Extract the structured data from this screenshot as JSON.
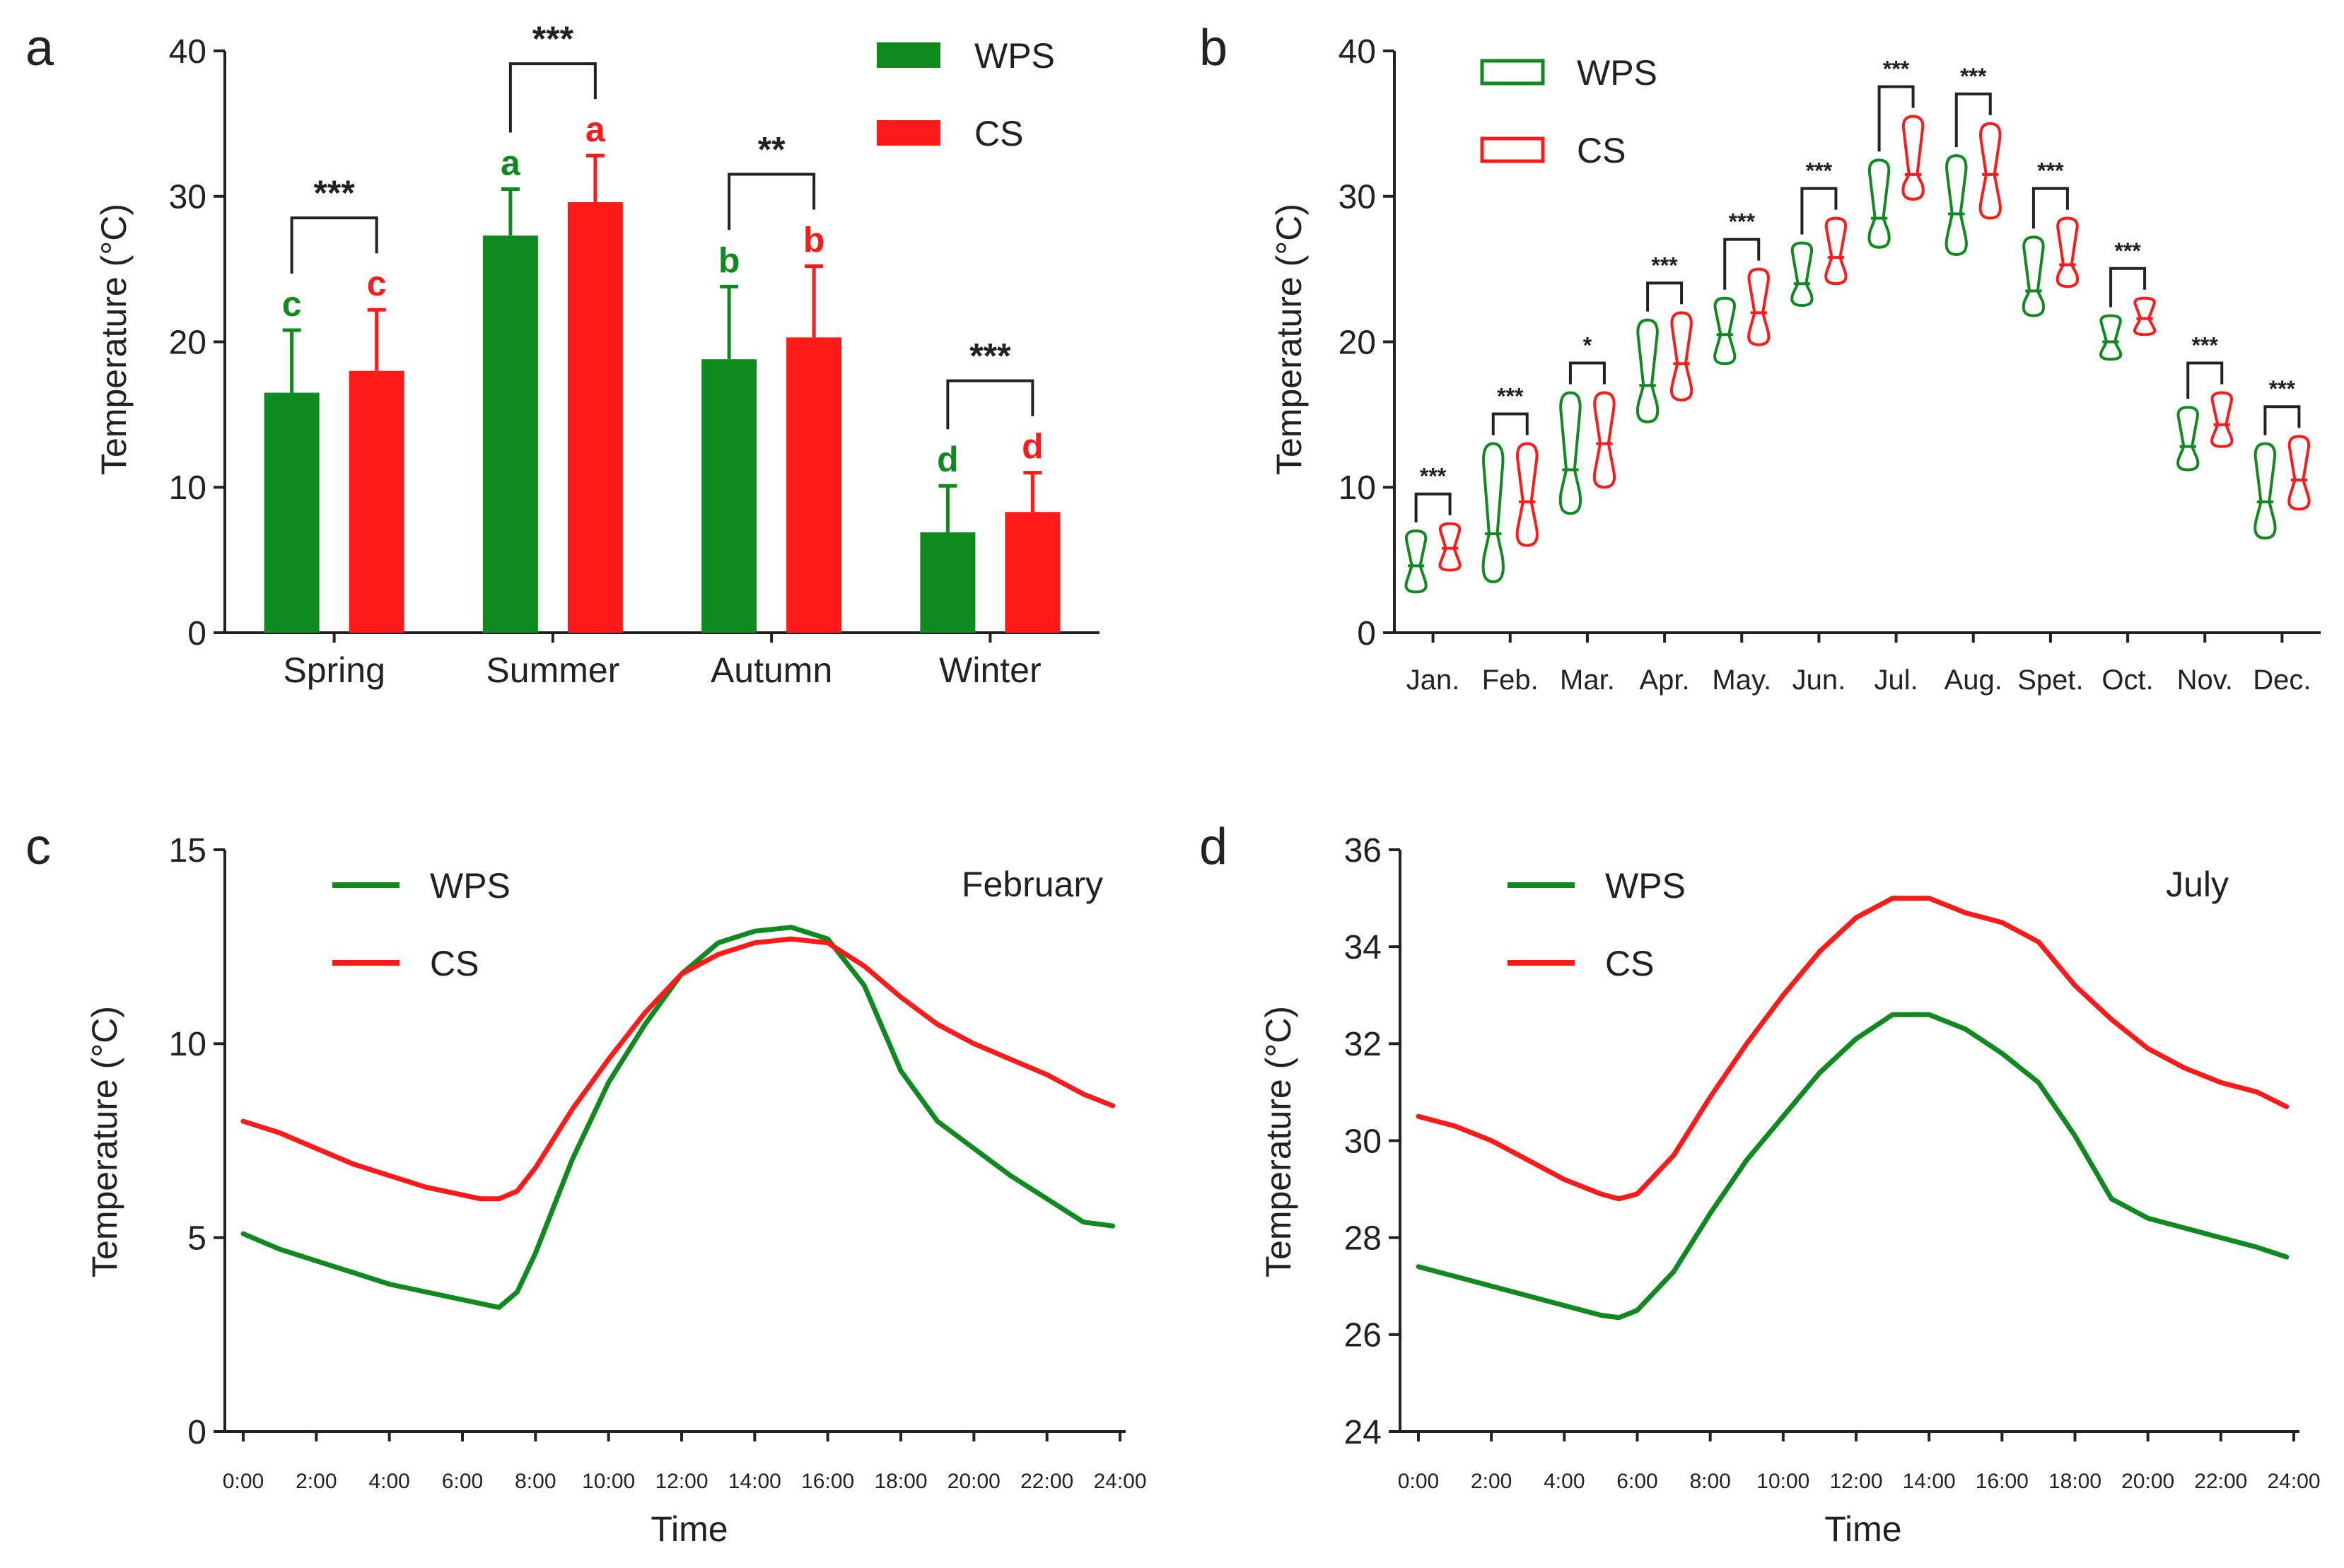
{
  "colors": {
    "wps": "#0e8a1e",
    "cs": "#ff1a1a",
    "axis": "#222222"
  },
  "chart_data": [
    {
      "panel": "a",
      "type": "bar",
      "ylabel": "Temperature (°C)",
      "ylim": [
        0,
        40
      ],
      "yticks": [
        0,
        10,
        20,
        30,
        40
      ],
      "categories": [
        "Spring",
        "Summer",
        "Autumn",
        "Winter"
      ],
      "legend": [
        "WPS",
        "CS"
      ],
      "series": [
        {
          "name": "WPS",
          "values": [
            16.5,
            27.3,
            18.8,
            6.9
          ],
          "errors": [
            4.3,
            3.2,
            5.0,
            3.2
          ],
          "letters": [
            "c",
            "a",
            "b",
            "d"
          ]
        },
        {
          "name": "CS",
          "values": [
            18.0,
            29.6,
            20.3,
            8.3
          ],
          "errors": [
            4.2,
            3.2,
            4.9,
            2.7
          ],
          "letters": [
            "c",
            "a",
            "b",
            "d"
          ]
        }
      ],
      "significance": [
        "***",
        "***",
        "**",
        "***"
      ]
    },
    {
      "panel": "b",
      "type": "violin",
      "ylabel": "Temperature (°C)",
      "ylim": [
        0,
        40
      ],
      "yticks": [
        0,
        10,
        20,
        30,
        40
      ],
      "categories": [
        "Jan.",
        "Feb.",
        "Mar.",
        "Apr.",
        "May.",
        "Jun.",
        "Jul.",
        "Aug.",
        "Spet.",
        "Oct.",
        "Nov.",
        "Dec."
      ],
      "legend": [
        "WPS",
        "CS"
      ],
      "series": [
        {
          "name": "WPS",
          "min": [
            2.8,
            3.5,
            8.2,
            14.5,
            18.5,
            22.5,
            26.5,
            26.0,
            21.8,
            18.8,
            11.2,
            6.5
          ],
          "median": [
            4.6,
            6.8,
            11.2,
            17.0,
            20.5,
            24.0,
            28.5,
            28.8,
            23.5,
            20.0,
            12.8,
            9.0
          ],
          "max": [
            7.0,
            13.0,
            16.5,
            21.5,
            23.0,
            26.8,
            32.5,
            32.8,
            27.2,
            21.8,
            15.5,
            13.0
          ]
        },
        {
          "name": "CS",
          "min": [
            4.3,
            6.0,
            10.0,
            16.0,
            19.8,
            24.0,
            29.8,
            28.5,
            23.8,
            20.5,
            12.8,
            8.5
          ],
          "median": [
            5.8,
            9.0,
            13.0,
            18.5,
            22.0,
            25.8,
            31.5,
            31.5,
            25.3,
            21.6,
            14.3,
            10.5
          ],
          "max": [
            7.5,
            13.0,
            16.5,
            22.0,
            25.0,
            28.5,
            35.5,
            35.0,
            28.5,
            23.0,
            16.5,
            13.5
          ]
        }
      ],
      "significance": [
        "***",
        "***",
        "*",
        "***",
        "***",
        "***",
        "***",
        "***",
        "***",
        "***",
        "***",
        "***"
      ]
    },
    {
      "panel": "c",
      "type": "line",
      "annotation": "February",
      "xlabel": "Time",
      "ylabel": "Temperature (°C)",
      "ylim": [
        0,
        15
      ],
      "yticks": [
        0,
        5,
        10,
        15
      ],
      "xlim": [
        0,
        24
      ],
      "xticks": [
        "0:00",
        "2:00",
        "4:00",
        "6:00",
        "8:00",
        "10:00",
        "12:00",
        "14:00",
        "16:00",
        "18:00",
        "20:00",
        "22:00",
        "24:00"
      ],
      "x": [
        0,
        1,
        2,
        3,
        4,
        5,
        6,
        6.5,
        7,
        7.5,
        8,
        9,
        10,
        11,
        12,
        13,
        14,
        15,
        16,
        17,
        18,
        19,
        20,
        21,
        22,
        23,
        23.8
      ],
      "series": [
        {
          "name": "WPS",
          "values": [
            5.1,
            4.7,
            4.4,
            4.1,
            3.8,
            3.6,
            3.4,
            3.3,
            3.2,
            3.6,
            4.6,
            7.0,
            9.0,
            10.5,
            11.8,
            12.6,
            12.9,
            13.0,
            12.7,
            11.5,
            9.3,
            8.0,
            7.3,
            6.6,
            6.0,
            5.4,
            5.3
          ]
        },
        {
          "name": "CS",
          "values": [
            8.0,
            7.7,
            7.3,
            6.9,
            6.6,
            6.3,
            6.1,
            6.0,
            6.0,
            6.2,
            6.8,
            8.3,
            9.6,
            10.8,
            11.8,
            12.3,
            12.6,
            12.7,
            12.6,
            12.0,
            11.2,
            10.5,
            10.0,
            9.6,
            9.2,
            8.7,
            8.4
          ]
        }
      ],
      "legend": [
        "WPS",
        "CS"
      ]
    },
    {
      "panel": "d",
      "type": "line",
      "annotation": "July",
      "xlabel": "Time",
      "ylabel": "Temperature (°C)",
      "ylim": [
        24,
        36
      ],
      "yticks": [
        24,
        26,
        28,
        30,
        32,
        34,
        36
      ],
      "xlim": [
        0,
        24
      ],
      "xticks": [
        "0:00",
        "2:00",
        "4:00",
        "6:00",
        "8:00",
        "10:00",
        "12:00",
        "14:00",
        "16:00",
        "18:00",
        "20:00",
        "22:00",
        "24:00"
      ],
      "x": [
        0,
        1,
        2,
        3,
        4,
        5,
        5.5,
        6,
        7,
        8,
        9,
        10,
        11,
        12,
        13,
        14,
        15,
        16,
        17,
        18,
        19,
        20,
        21,
        22,
        23,
        23.8
      ],
      "series": [
        {
          "name": "WPS",
          "values": [
            27.4,
            27.2,
            27.0,
            26.8,
            26.6,
            26.4,
            26.35,
            26.5,
            27.3,
            28.5,
            29.6,
            30.5,
            31.4,
            32.1,
            32.6,
            32.6,
            32.3,
            31.8,
            31.2,
            30.1,
            28.8,
            28.4,
            28.2,
            28.0,
            27.8,
            27.6
          ]
        },
        {
          "name": "CS",
          "values": [
            30.5,
            30.3,
            30.0,
            29.6,
            29.2,
            28.9,
            28.8,
            28.9,
            29.7,
            30.9,
            32.0,
            33.0,
            33.9,
            34.6,
            35.0,
            35.0,
            34.7,
            34.5,
            34.1,
            33.2,
            32.5,
            31.9,
            31.5,
            31.2,
            31.0,
            30.7
          ]
        }
      ],
      "legend": [
        "WPS",
        "CS"
      ]
    }
  ]
}
